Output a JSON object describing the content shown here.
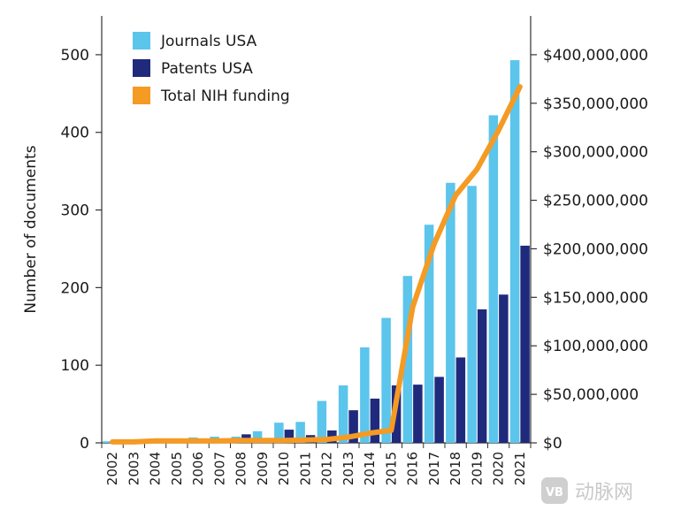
{
  "chart_data": {
    "type": "bar",
    "title": "",
    "xlabel": "",
    "ylabel": "Number of documents",
    "ylim": [
      0,
      550
    ],
    "y_ticks": [
      0,
      100,
      200,
      300,
      400,
      500
    ],
    "y2lim": [
      0,
      440000000
    ],
    "y2_ticks": [
      0,
      50000000,
      100000000,
      150000000,
      200000000,
      250000000,
      300000000,
      350000000,
      400000000
    ],
    "y2_tick_labels": [
      "$0",
      "$50,000,000",
      "$100,000,000",
      "$150,000,000",
      "$200,000,000",
      "$250,000,000",
      "$300,000,000",
      "$350,000,000",
      "$400,000,000"
    ],
    "categories": [
      "2002",
      "2003",
      "2004",
      "2005",
      "2006",
      "2007",
      "2008",
      "2009",
      "2010",
      "2011",
      "2012",
      "2013",
      "2014",
      "2015",
      "2016",
      "2017",
      "2018",
      "2019",
      "2020",
      "2021"
    ],
    "series": [
      {
        "name": "Journals USA",
        "kind": "bar",
        "axis": "left",
        "color": "#5bc5ec",
        "values": [
          2,
          1,
          3,
          4,
          7,
          8,
          8,
          15,
          26,
          27,
          54,
          74,
          123,
          161,
          215,
          281,
          335,
          331,
          422,
          493
        ]
      },
      {
        "name": "Patents USA",
        "kind": "bar",
        "axis": "left",
        "color": "#1f2a7c",
        "values": [
          0,
          0,
          0,
          1,
          1,
          2,
          11,
          3,
          17,
          10,
          16,
          42,
          57,
          74,
          75,
          85,
          110,
          172,
          191,
          254
        ]
      },
      {
        "name": "Total NIH funding",
        "kind": "line",
        "axis": "right",
        "color": "#f59a23",
        "values": [
          1000000,
          1000000,
          2000000,
          2000000,
          2000000,
          2000000,
          2500000,
          2500000,
          2500000,
          3000000,
          3500000,
          6000000,
          10000000,
          13000000,
          140000000,
          205000000,
          255000000,
          282000000,
          322000000,
          367000000
        ]
      }
    ],
    "legend": "top-left"
  },
  "watermark": {
    "logo_text": "VB",
    "label": "动脉网"
  }
}
